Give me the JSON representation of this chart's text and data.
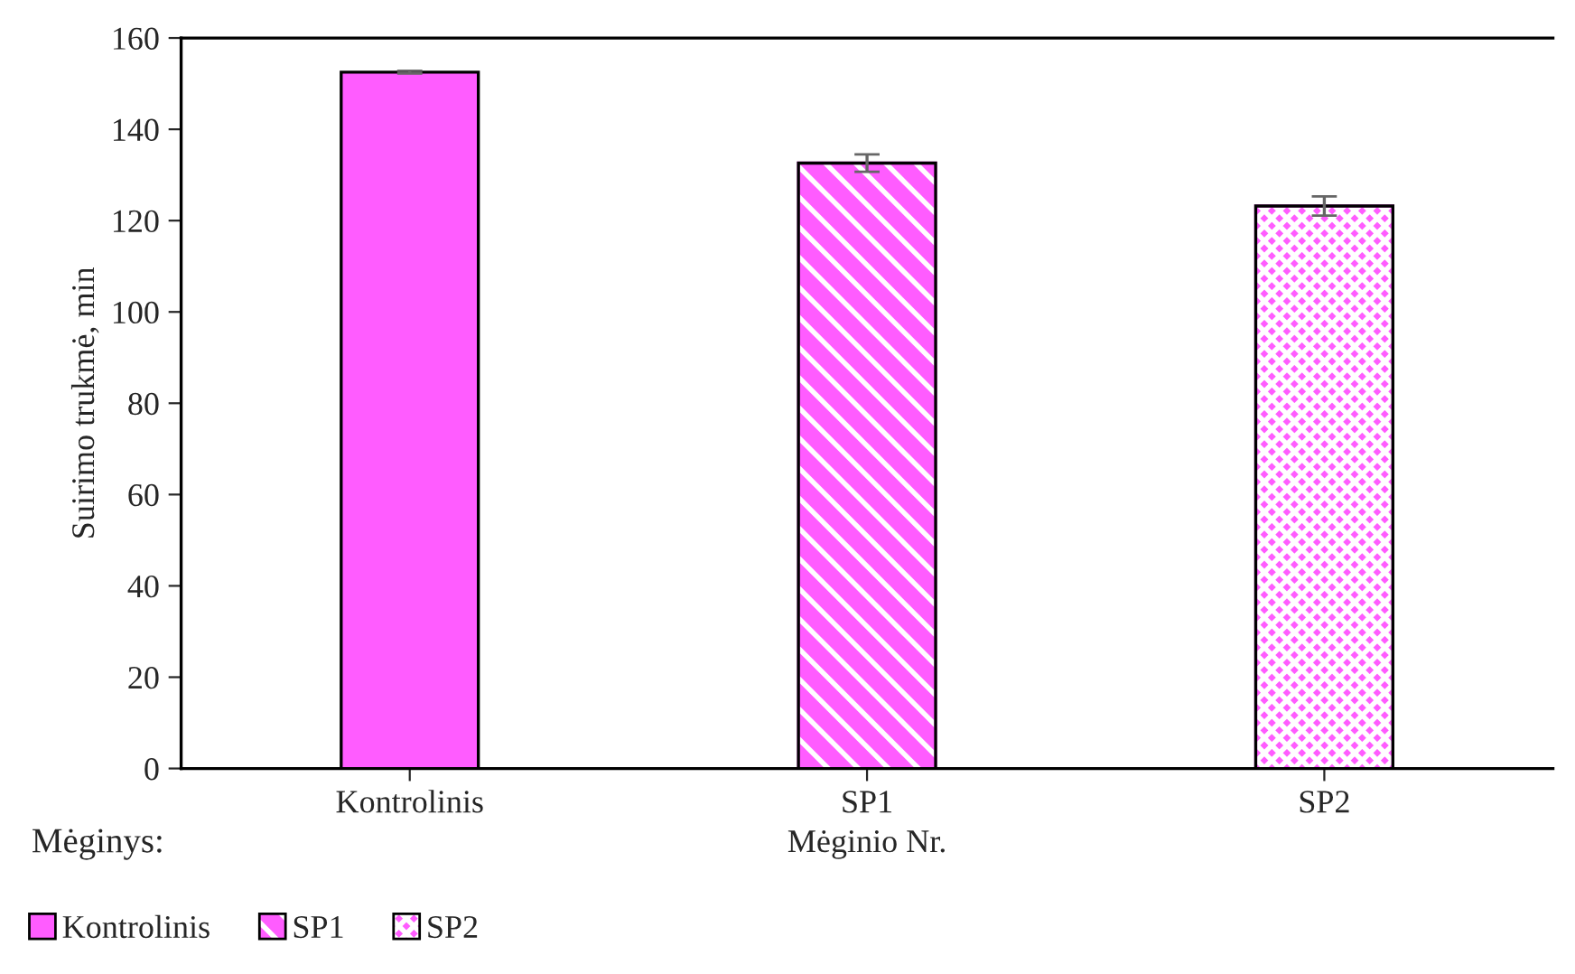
{
  "chart_data": {
    "type": "bar",
    "xlabel": "Mėginio Nr.",
    "ylabel": "Suirimo trukmė, min",
    "legend_title": "Mėginys:",
    "categories": [
      "Kontrolinis",
      "SP1",
      "SP2"
    ],
    "series": [
      {
        "name": "Kontrolinis",
        "color": "#ff5cff",
        "values": [
          152.5,
          null,
          null
        ],
        "errors": [
          0.3,
          null,
          null
        ]
      },
      {
        "name": "SP1",
        "color": "#ff5cff",
        "values": [
          null,
          132.6,
          null
        ],
        "errors": [
          null,
          1.9,
          null
        ]
      },
      {
        "name": "SP2",
        "color": "#ff5cff",
        "values": [
          null,
          null,
          123.2
        ],
        "errors": [
          null,
          null,
          2.1
        ]
      }
    ],
    "ylim": [
      0,
      160
    ],
    "yticks": [
      0,
      20,
      40,
      60,
      80,
      100,
      120,
      140,
      160
    ],
    "grid": false,
    "legend": "bottom"
  }
}
